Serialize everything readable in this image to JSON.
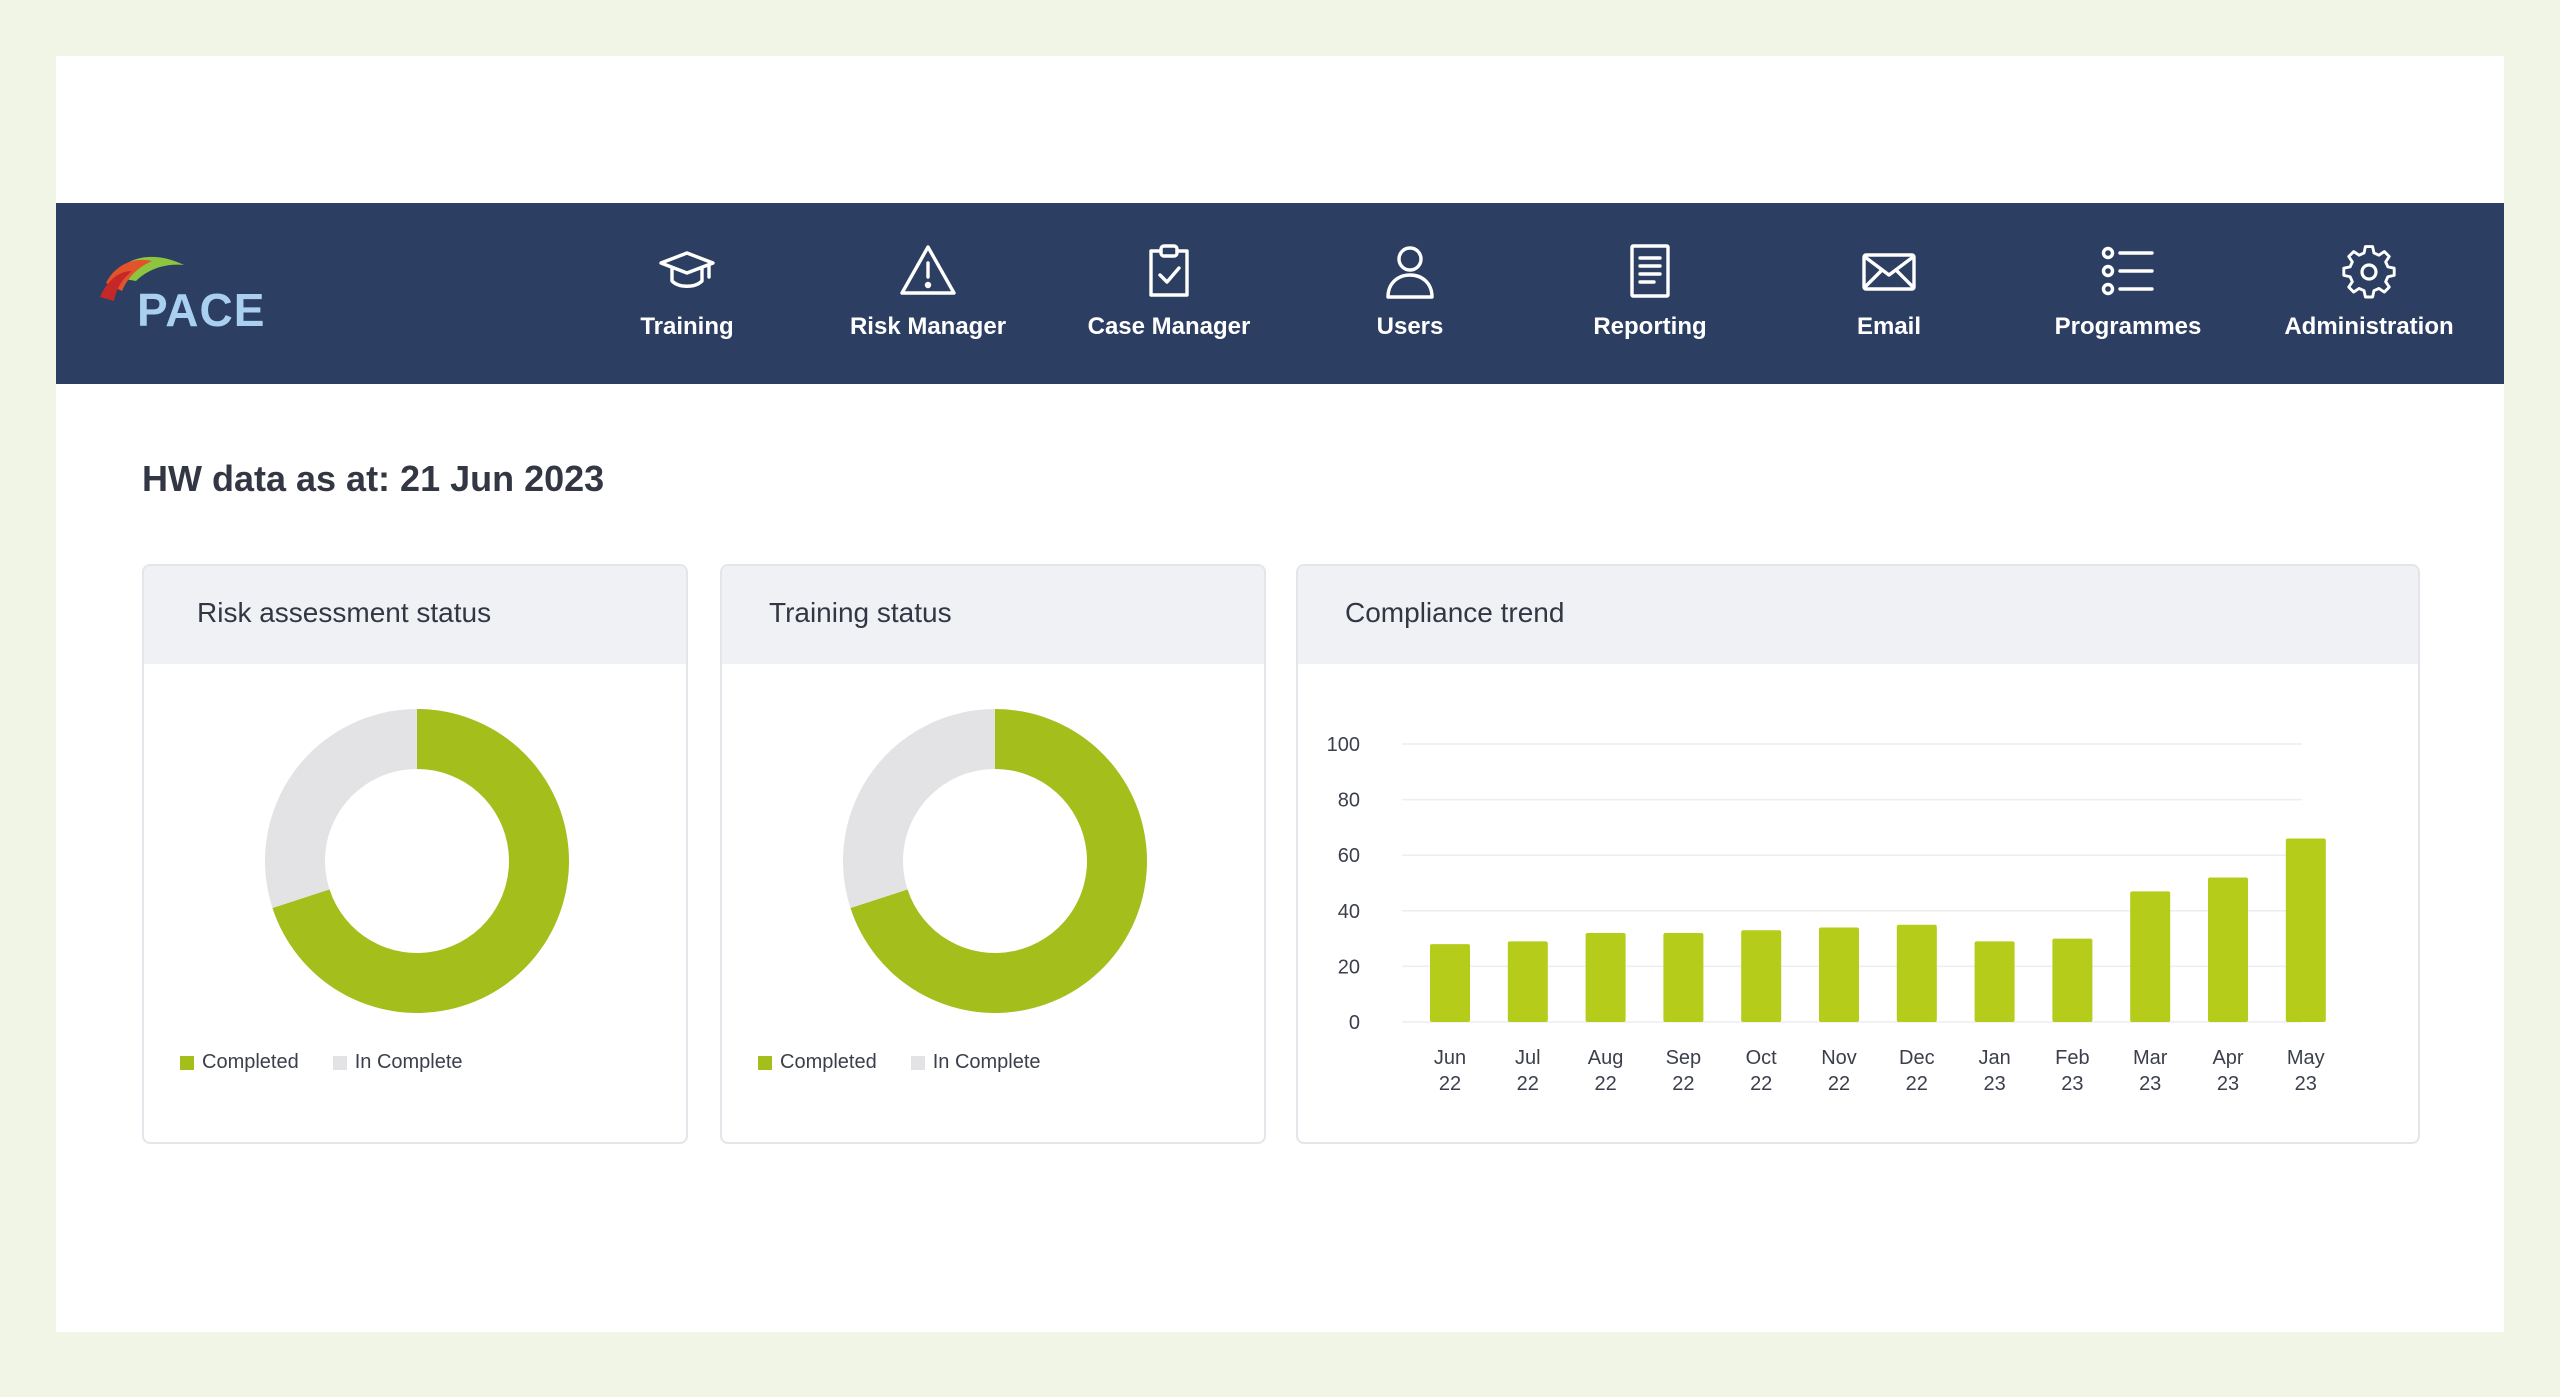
{
  "app": {
    "logo_text": "PACE"
  },
  "nav": {
    "items": [
      {
        "label": "Training",
        "icon": "graduation-cap-icon"
      },
      {
        "label": "Risk Manager",
        "icon": "warning-triangle-icon"
      },
      {
        "label": "Case Manager",
        "icon": "clipboard-check-icon"
      },
      {
        "label": "Users",
        "icon": "user-icon"
      },
      {
        "label": "Reporting",
        "icon": "document-icon"
      },
      {
        "label": "Email",
        "icon": "envelope-icon"
      },
      {
        "label": "Programmes",
        "icon": "list-icon"
      },
      {
        "label": "Administration",
        "icon": "gear-icon"
      }
    ]
  },
  "page": {
    "title": "HW data as at: 21 Jun 2023"
  },
  "cards": {
    "risk": {
      "title": "Risk assessment status",
      "legend": [
        "Completed",
        "In Complete"
      ]
    },
    "training": {
      "title": "Training status",
      "legend": [
        "Completed",
        "In Complete"
      ]
    },
    "compliance": {
      "title": "Compliance trend"
    }
  },
  "colors": {
    "nav_bg": "#2d3e63",
    "completed": "#a4be1c",
    "incomplete": "#e3e2e5",
    "bar": "#b5cc1a"
  },
  "chart_data": [
    {
      "type": "pie",
      "title": "Risk assessment status",
      "categories": [
        "Completed",
        "In Complete"
      ],
      "values": [
        70,
        30
      ]
    },
    {
      "type": "pie",
      "title": "Training status",
      "categories": [
        "Completed",
        "In Complete"
      ],
      "values": [
        70,
        30
      ]
    },
    {
      "type": "bar",
      "title": "Compliance trend",
      "categories": [
        "Jun 22",
        "Jul 22",
        "Aug 22",
        "Sep 22",
        "Oct 22",
        "Nov 22",
        "Dec 22",
        "Jan 23",
        "Feb 23",
        "Mar 23",
        "Apr 23",
        "May 23"
      ],
      "values": [
        28,
        29,
        32,
        32,
        33,
        34,
        35,
        29,
        30,
        47,
        52,
        66
      ],
      "ylim": [
        0,
        100
      ],
      "yticks": [
        0,
        20,
        40,
        60,
        80,
        100
      ],
      "grid": true
    }
  ]
}
